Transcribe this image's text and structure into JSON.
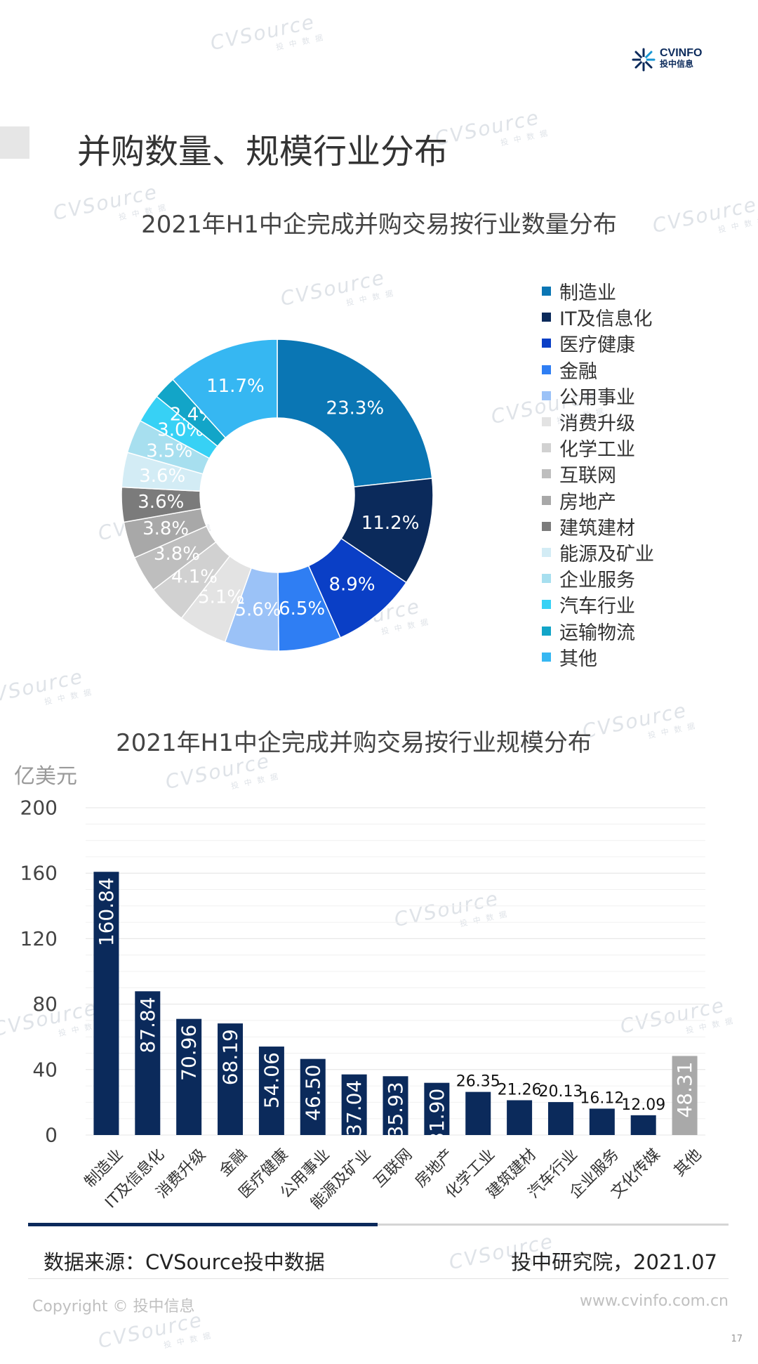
{
  "header": {
    "logo_main": "CVINFO",
    "logo_sub": "投中信息",
    "page_title": "并购数量、规模行业分布",
    "watermark": "CVSource",
    "watermark_sub": "投中数据"
  },
  "footer": {
    "source": "数据来源：CVSource投中数据",
    "institute": "投中研究院，2021.07",
    "copyright": "Copyright © 投中信息",
    "site": "www.cvinfo.com.cn",
    "page_number": "17"
  },
  "chart_data": [
    {
      "type": "pie",
      "title": "2021年H1中企完成并购交易按行业数量分布",
      "categories": [
        "制造业",
        "IT及信息化",
        "医疗健康",
        "金融",
        "公用事业",
        "消费升级",
        "化学工业",
        "互联网",
        "房地产",
        "建筑建材",
        "能源及矿业",
        "企业服务",
        "汽车行业",
        "运输物流",
        "其他"
      ],
      "values": [
        23.3,
        11.2,
        8.9,
        6.5,
        5.6,
        5.1,
        4.1,
        3.8,
        3.8,
        3.6,
        3.6,
        3.5,
        3.0,
        2.4,
        11.7
      ],
      "labels": [
        "23.3%",
        "11.2%",
        "8.9%",
        "6.5%",
        "5.6%",
        "5.1%",
        "4.1%",
        "3.8%",
        "3.8%",
        "3.6%",
        "3.6%",
        "3.5%",
        "3.0%",
        "2.4%",
        "11.7%"
      ],
      "colors": [
        "#0a76b4",
        "#0b2a5b",
        "#0a3fc6",
        "#2f7ef3",
        "#9bc2f7",
        "#e3e3e3",
        "#d1d1d1",
        "#bebebe",
        "#a8a8a8",
        "#7b7b7b",
        "#d3ecf5",
        "#a7dfef",
        "#37d1f5",
        "#12a5c8",
        "#36b7f2"
      ],
      "label_colors": [
        "#ffffff",
        "#ffffff",
        "#ffffff",
        "#ffffff",
        "#ffffff",
        "#ffffff",
        "#ffffff",
        "#ffffff",
        "#ffffff",
        "#ffffff",
        "#ffffff",
        "#ffffff",
        "#ffffff",
        "#ffffff",
        "#ffffff"
      ],
      "legend_position": "right"
    },
    {
      "type": "bar",
      "title": "2021年H1中企完成并购交易按行业规模分布",
      "ylabel": "亿美元",
      "ylim": [
        0,
        200
      ],
      "yticks": [
        0,
        40,
        80,
        120,
        160,
        200
      ],
      "categories": [
        "制造业",
        "IT及信息化",
        "消费升级",
        "金融",
        "医疗健康",
        "公用事业",
        "能源及矿业",
        "互联网",
        "房地产",
        "化学工业",
        "建筑建材",
        "汽车行业",
        "企业服务",
        "文化传媒",
        "其他"
      ],
      "values": [
        160.84,
        87.84,
        70.96,
        68.19,
        54.06,
        46.5,
        37.04,
        35.93,
        31.9,
        26.35,
        21.26,
        20.13,
        16.12,
        12.09,
        48.31
      ],
      "labels": [
        "160.84",
        "87.84",
        "70.96",
        "68.19",
        "54.06",
        "46.50",
        "37.04",
        "35.93",
        "31.90",
        "26.35",
        "21.26",
        "20.13",
        "16.12",
        "12.09",
        "48.31"
      ],
      "colors": [
        "#0b2a5b",
        "#0b2a5b",
        "#0b2a5b",
        "#0b2a5b",
        "#0b2a5b",
        "#0b2a5b",
        "#0b2a5b",
        "#0b2a5b",
        "#0b2a5b",
        "#0b2a5b",
        "#0b2a5b",
        "#0b2a5b",
        "#0b2a5b",
        "#0b2a5b",
        "#a9a9a9"
      ],
      "grid": true
    }
  ]
}
